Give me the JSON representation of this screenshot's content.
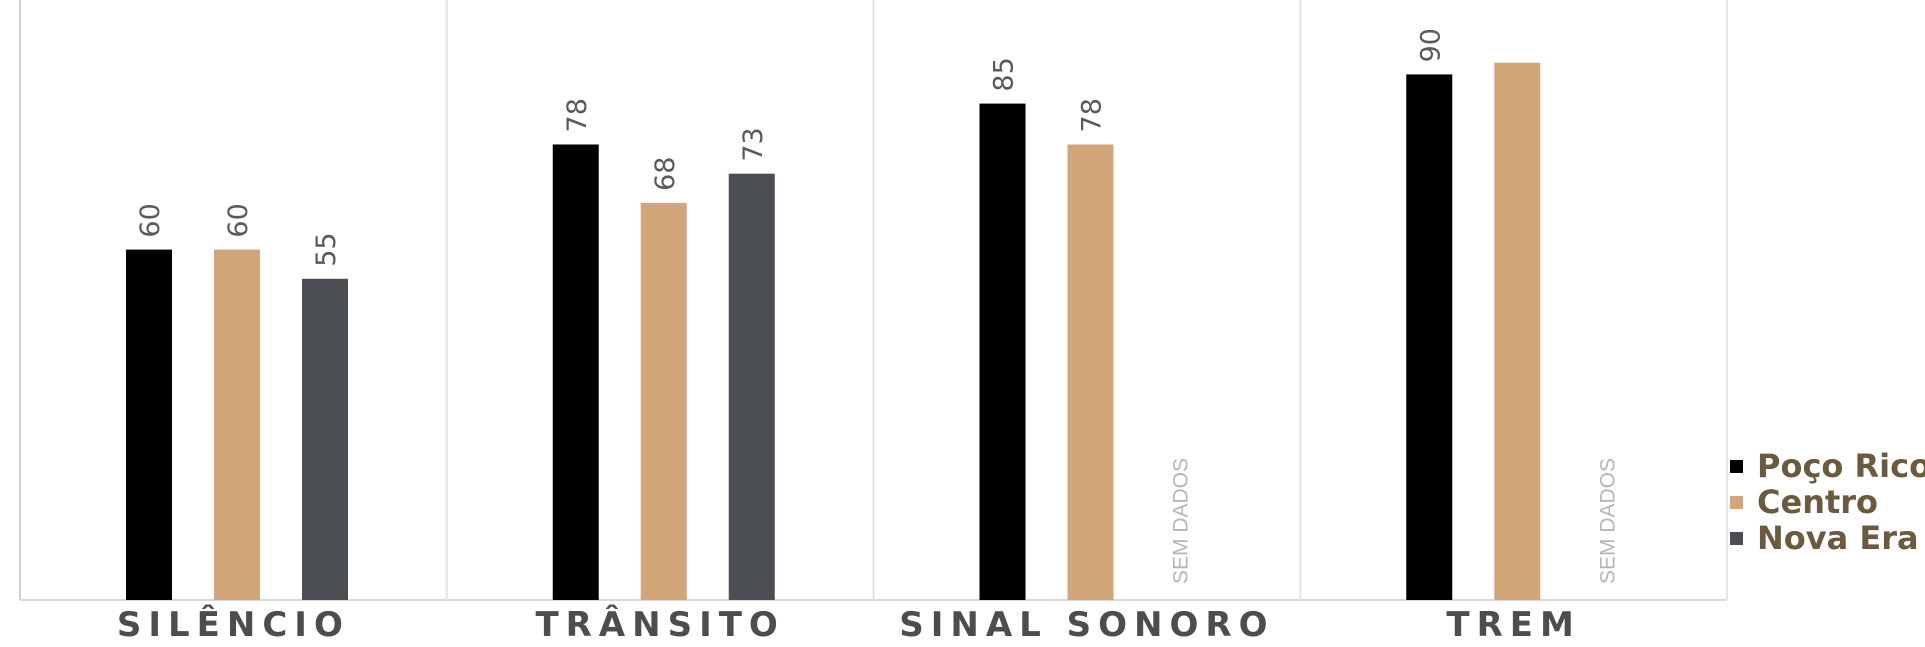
{
  "chart_data": {
    "type": "bar",
    "categories": [
      "SILÊNCIO",
      "TRÂNSITO",
      "SINAL SONORO",
      "TREM"
    ],
    "series": [
      {
        "name": "Poço Rico",
        "color": "#000000",
        "values": [
          60,
          78,
          85,
          90
        ]
      },
      {
        "name": "Centro",
        "color": "#d2a679",
        "values": [
          60,
          68,
          78,
          92
        ]
      },
      {
        "name": "Nova Era",
        "color": "#4b4e52",
        "values": [
          55,
          73,
          null,
          null
        ]
      }
    ],
    "data_labels": [
      [
        "60",
        "78",
        "85",
        "90"
      ],
      [
        "60",
        "68",
        "78",
        ""
      ],
      [
        "55",
        "73",
        "",
        ""
      ]
    ],
    "missing_label": "SEM DADOS",
    "ylim": [
      0,
      100
    ],
    "grid": false,
    "legend_position": "right"
  }
}
